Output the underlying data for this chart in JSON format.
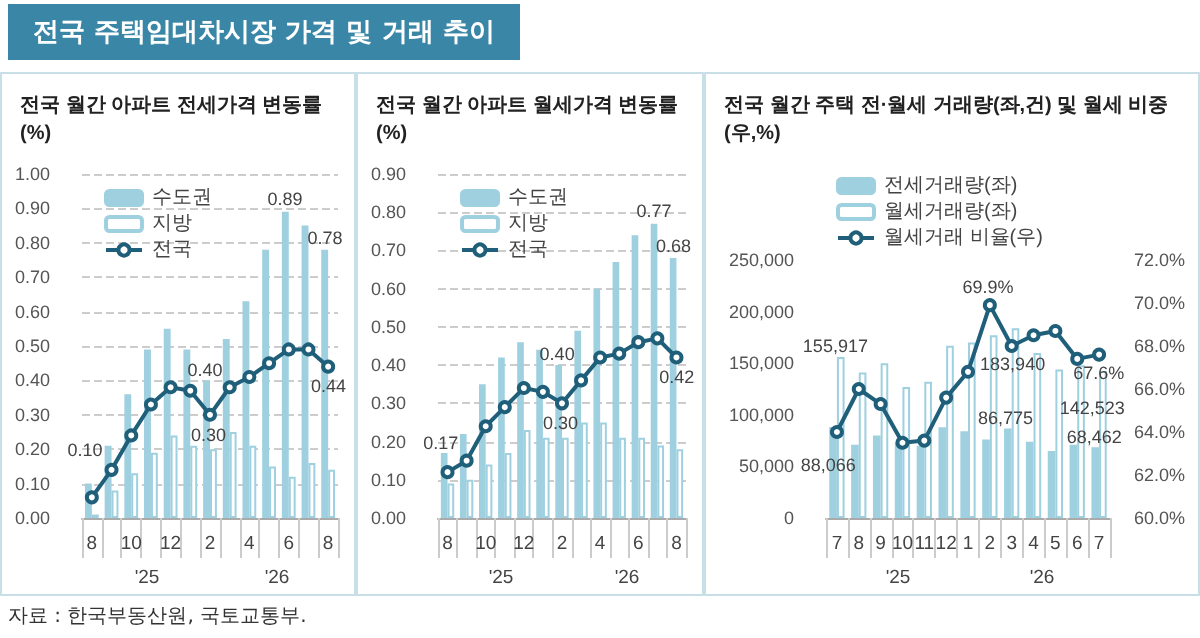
{
  "chart_data": [
    {
      "type": "other",
      "title": "전국 주택임대차시장 가격 및 거래 추이",
      "annotations": [
        "자료 : 한국부동산원, 국토교통부."
      ]
    },
    {
      "type": "bar",
      "title": "전국 월간 아파트 전세가격 변동률(%)",
      "categories": [
        "8",
        null,
        "10",
        null,
        "12",
        null,
        "2",
        null,
        "4",
        null,
        "6",
        null,
        "8"
      ],
      "series": [
        {
          "name": "수도권",
          "color": "#9fd0e0",
          "values": [
            0.1,
            0.21,
            0.36,
            0.49,
            0.55,
            0.49,
            0.4,
            0.52,
            0.63,
            0.78,
            0.89,
            0.85,
            0.78
          ],
          "value_labels": [
            "0.10",
            null,
            null,
            null,
            null,
            null,
            "0.40",
            null,
            null,
            null,
            "0.89",
            null,
            "0.78"
          ]
        },
        {
          "name": "지방",
          "color": "#ffffff",
          "values": [
            0.01,
            0.08,
            0.13,
            0.19,
            0.24,
            0.21,
            0.2,
            0.25,
            0.21,
            0.15,
            0.12,
            0.16,
            0.14
          ]
        },
        {
          "name": "전국",
          "type": "line",
          "color": "#1f5f7a",
          "values": [
            0.06,
            0.14,
            0.24,
            0.33,
            0.38,
            0.37,
            0.3,
            0.38,
            0.41,
            0.45,
            0.49,
            0.49,
            0.44
          ],
          "value_labels": [
            null,
            null,
            null,
            null,
            null,
            null,
            "0.30",
            null,
            null,
            null,
            null,
            null,
            "0.44"
          ]
        }
      ],
      "ylim": [
        0,
        1
      ],
      "yticks": [
        {
          "value": 0,
          "label": "0.00"
        },
        {
          "value": 0.1,
          "label": "0.10"
        },
        {
          "value": 0.2,
          "label": "0.20"
        },
        {
          "value": 0.3,
          "label": "0.30"
        },
        {
          "value": 0.4,
          "label": "0.40"
        },
        {
          "value": 0.5,
          "label": "0.50"
        },
        {
          "value": 0.6,
          "label": "0.60"
        },
        {
          "value": 0.7,
          "label": "0.70"
        },
        {
          "value": 0.8,
          "label": "0.80"
        },
        {
          "value": 0.9,
          "label": "0.90"
        },
        {
          "value": 1,
          "label": "1.00"
        }
      ],
      "grid": "y",
      "legend": "top left",
      "marker": "circle",
      "line_style": "solid",
      "annotations": [
        "'25",
        "'26"
      ]
    },
    {
      "type": "bar",
      "title": "전국 월간 아파트 월세가격 변동률(%)",
      "categories": [
        "8",
        null,
        "10",
        null,
        "12",
        null,
        "2",
        null,
        "4",
        null,
        "6",
        null,
        "8"
      ],
      "series": [
        {
          "name": "수도권",
          "color": "#9fd0e0",
          "values": [
            0.17,
            0.22,
            0.35,
            0.42,
            0.46,
            0.44,
            0.4,
            0.49,
            0.6,
            0.67,
            0.74,
            0.77,
            0.68
          ],
          "value_labels": [
            "0.17",
            null,
            null,
            null,
            null,
            null,
            "0.40",
            null,
            null,
            null,
            null,
            "0.77",
            "0.68"
          ]
        },
        {
          "name": "지방",
          "color": "#ffffff",
          "values": [
            0.09,
            0.1,
            0.14,
            0.17,
            0.23,
            0.21,
            0.21,
            0.25,
            0.25,
            0.21,
            0.21,
            0.19,
            0.18
          ]
        },
        {
          "name": "전국",
          "type": "line",
          "color": "#1f5f7a",
          "values": [
            0.12,
            0.15,
            0.24,
            0.29,
            0.34,
            0.33,
            0.3,
            0.36,
            0.42,
            0.43,
            0.46,
            0.47,
            0.42
          ],
          "value_labels": [
            null,
            null,
            null,
            null,
            null,
            null,
            "0.30",
            null,
            null,
            null,
            null,
            null,
            "0.42"
          ]
        }
      ],
      "ylim": [
        0,
        0.9
      ],
      "yticks": [
        {
          "value": 0,
          "label": "0.00"
        },
        {
          "value": 0.1,
          "label": "0.10"
        },
        {
          "value": 0.2,
          "label": "0.20"
        },
        {
          "value": 0.3,
          "label": "0.30"
        },
        {
          "value": 0.4,
          "label": "0.40"
        },
        {
          "value": 0.5,
          "label": "0.50"
        },
        {
          "value": 0.6,
          "label": "0.60"
        },
        {
          "value": 0.7,
          "label": "0.70"
        },
        {
          "value": 0.8,
          "label": "0.80"
        },
        {
          "value": 0.9,
          "label": "0.90"
        }
      ],
      "grid": "y",
      "legend": "top left",
      "marker": "circle",
      "line_style": "solid",
      "annotations": [
        "'25",
        "'26"
      ]
    },
    {
      "type": "bar",
      "title": "전국 월간 주택 전·월세 거래량(좌,건) 및 월세 비중(우,%)",
      "categories": [
        "7",
        "8",
        "9",
        "10",
        "11",
        "12",
        "1",
        "2",
        "3",
        "4",
        "5",
        "6",
        "7"
      ],
      "series": [
        {
          "name": "전세거래량(좌)",
          "color": "#9fd0e0",
          "values": [
            88066,
            71000,
            80000,
            73000,
            70000,
            88000,
            84000,
            76000,
            86775,
            74000,
            65000,
            71000,
            68462
          ],
          "value_labels": [
            "88,066",
            null,
            null,
            null,
            null,
            null,
            null,
            null,
            "86,775",
            null,
            null,
            null,
            "68,462"
          ]
        },
        {
          "name": "월세거래량(좌)",
          "color": "#ffffff",
          "values": [
            155917,
            141000,
            150000,
            127000,
            132000,
            167000,
            170000,
            177000,
            183940,
            160000,
            144000,
            148000,
            142523
          ],
          "value_labels": [
            "155,917",
            null,
            null,
            null,
            null,
            null,
            null,
            null,
            "183,940",
            null,
            null,
            null,
            "142,523"
          ]
        },
        {
          "name": "월세거래 비율(우)",
          "type": "line",
          "axis": "y2",
          "color": "#1f5f7a",
          "values": [
            64.0,
            66.0,
            65.3,
            63.5,
            63.6,
            65.6,
            66.8,
            69.9,
            68.0,
            68.5,
            68.7,
            67.4,
            67.6
          ],
          "value_labels": [
            null,
            null,
            null,
            null,
            null,
            null,
            null,
            "69.9%",
            null,
            null,
            null,
            null,
            "67.6%"
          ]
        }
      ],
      "ylim": [
        0,
        250000
      ],
      "yticks": [
        0,
        {
          "value": 50000,
          "label": "50,000"
        },
        {
          "value": 100000,
          "label": "100,000"
        },
        {
          "value": 150000,
          "label": "150,000"
        },
        {
          "value": 200000,
          "label": "200,000"
        },
        {
          "value": 250000,
          "label": "250,000"
        }
      ],
      "y2lim": [
        60,
        72
      ],
      "y2ticks": [
        {
          "value": 60,
          "label": "60.0%"
        },
        {
          "value": 62,
          "label": "62.0%"
        },
        {
          "value": 64,
          "label": "64.0%"
        },
        {
          "value": 66,
          "label": "66.0%"
        },
        {
          "value": 68,
          "label": "68.0%"
        },
        {
          "value": 70,
          "label": "70.0%"
        },
        {
          "value": 72,
          "label": "72.0%"
        }
      ],
      "legend": "top",
      "marker": "circle",
      "line_style": "solid",
      "annotations": [
        "'25",
        "'26"
      ]
    }
  ]
}
